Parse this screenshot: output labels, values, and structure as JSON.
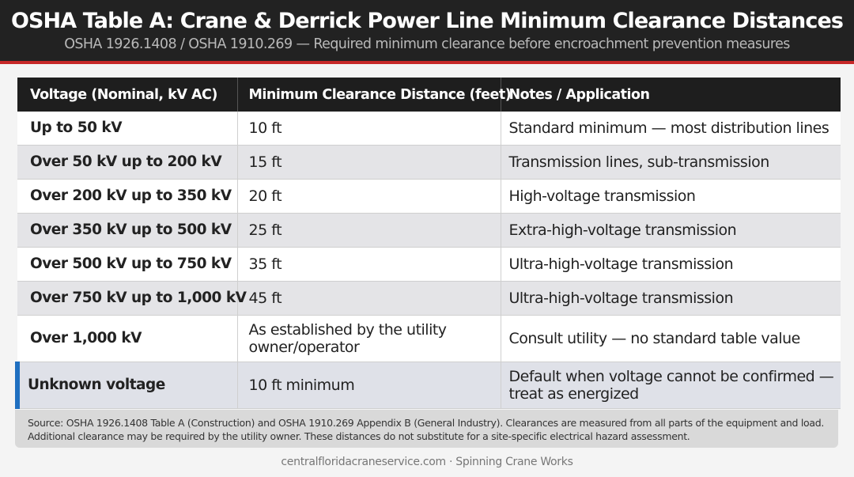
{
  "header": {
    "title": "OSHA Table A: Crane & Derrick Power Line Minimum Clearance Distances",
    "subtitle": "OSHA 1926.1408 / OSHA 1910.269 — Required minimum clearance before encroachment prevention measures"
  },
  "table": {
    "columns": [
      "Voltage (Nominal, kV AC)",
      "Minimum Clearance Distance (feet)",
      "Notes / Application"
    ],
    "rows": [
      {
        "voltage": "Up to 50 kV",
        "clearance": "10 ft",
        "notes": "Standard minimum — most distribution lines"
      },
      {
        "voltage": "Over 50 kV up to 200 kV",
        "clearance": "15 ft",
        "notes": "Transmission lines, sub-transmission"
      },
      {
        "voltage": "Over 200 kV up to 350 kV",
        "clearance": "20 ft",
        "notes": "High-voltage transmission"
      },
      {
        "voltage": "Over 350 kV up to 500 kV",
        "clearance": "25 ft",
        "notes": "Extra-high-voltage transmission"
      },
      {
        "voltage": "Over 500 kV up to 750 kV",
        "clearance": "35 ft",
        "notes": "Ultra-high-voltage transmission"
      },
      {
        "voltage": "Over 750 kV up to 1,000 kV",
        "clearance": "45 ft",
        "notes": "Ultra-high-voltage transmission"
      },
      {
        "voltage": "Over 1,000 kV",
        "clearance": "As established by the utility owner/operator",
        "notes": "Consult utility — no standard table value"
      },
      {
        "voltage": "Unknown voltage",
        "clearance": "10 ft minimum",
        "notes": "Default when voltage cannot be confirmed — treat as energized"
      }
    ]
  },
  "footnote": "Source: OSHA 1926.1408 Table A (Construction) and OSHA 1910.269 Appendix B (General Industry). Clearances are measured from all parts of the equipment and load. Additional clearance may be required by the utility owner. These distances do not substitute for a site-specific electrical hazard assessment.",
  "footer": {
    "site": "centralfloridacraneservice.com · Spinning Crane Works"
  },
  "colors": {
    "header_bg": "#222222",
    "accent_red": "#c62828",
    "highlight_blue": "#1f6fc0"
  }
}
